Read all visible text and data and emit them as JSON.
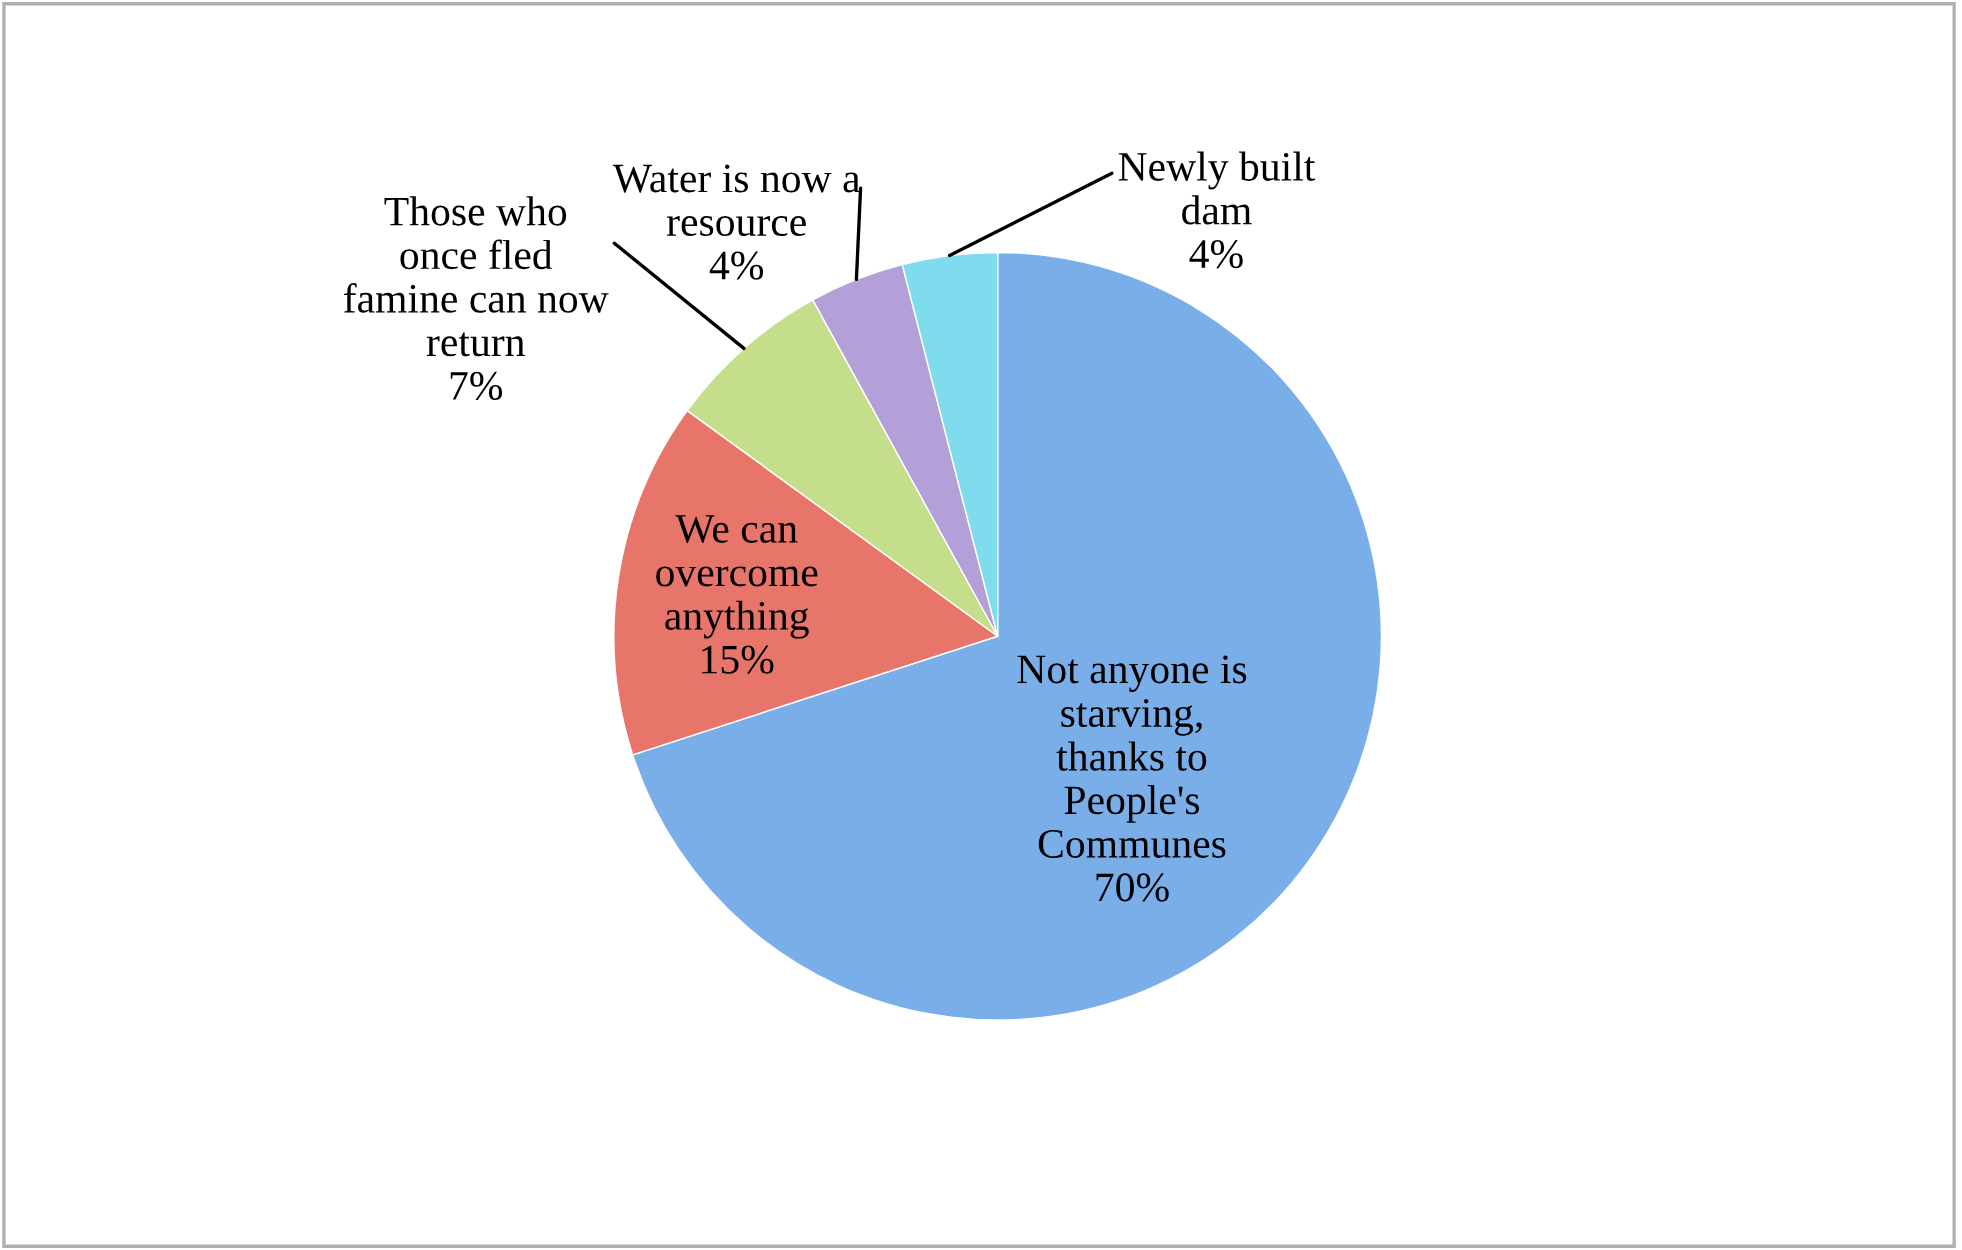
{
  "chart_data": {
    "type": "pie",
    "categories": [
      "Not anyone is\nstarving,\nthanks to\nPeople's\nCommunes",
      "We can\novercome\nanything",
      "Those who\nonce fled\nfamine can now\nreturn",
      "Water is now a\nresource",
      "Newly built\ndam"
    ],
    "values": [
      70,
      15,
      7,
      4,
      4
    ],
    "value_labels": [
      "70%",
      "15%",
      "7%",
      "4%",
      "4%"
    ],
    "colors": [
      "#7aaee8",
      "#e8756a",
      "#c5de8c",
      "#b3a0d9",
      "#7fdcef"
    ],
    "legend": false
  }
}
